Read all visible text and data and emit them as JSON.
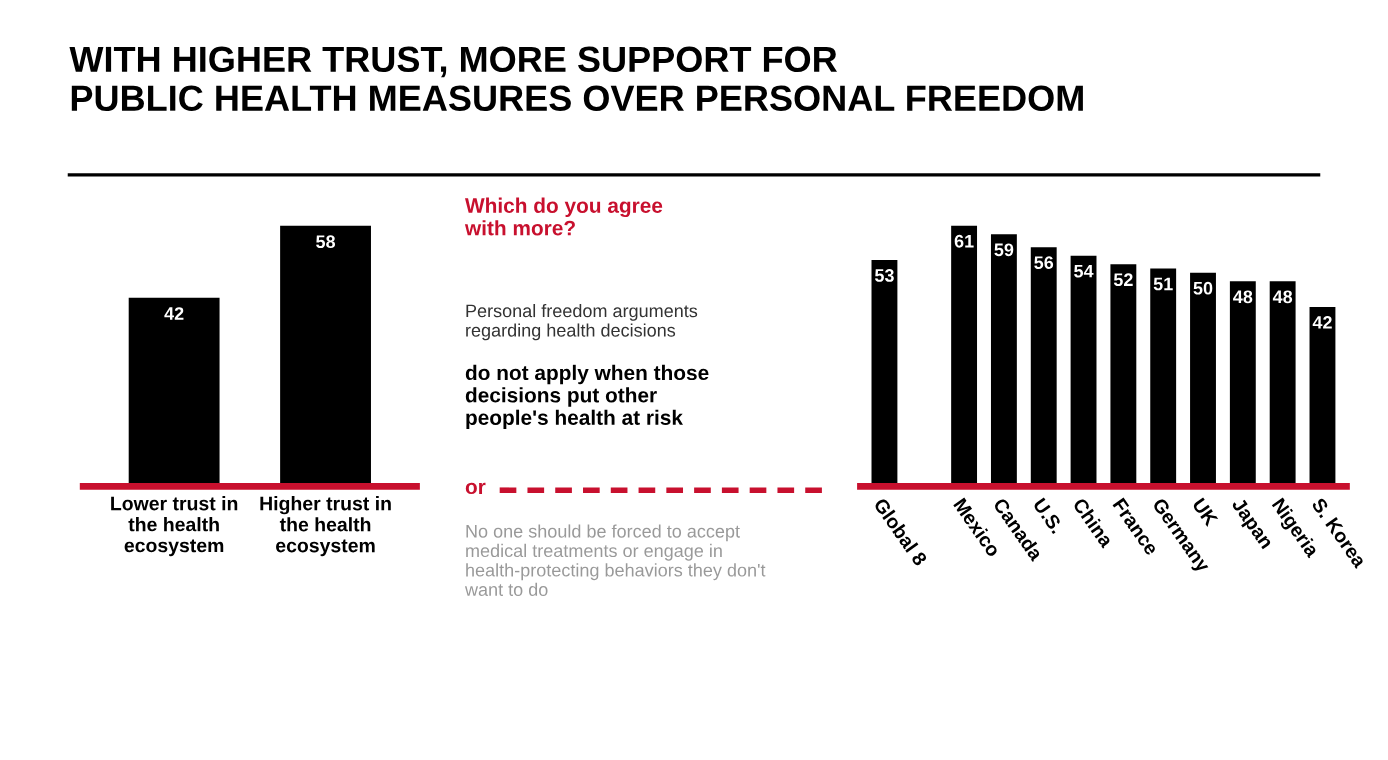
{
  "chart_data": [
    {
      "type": "bar",
      "title": "WITH HIGHER TRUST, MORE SUPPORT FOR\nPUBLIC HEALTH MEASURES OVER PERSONAL FREEDOM",
      "categories": [
        "Lower trust in\nthe health\necosystem",
        "Higher trust in\nthe health\necosystem"
      ],
      "values": [
        42,
        58
      ],
      "color": "#000000",
      "data_labels": true,
      "tick_labels": "x",
      "grid": false,
      "legend": false
    },
    {
      "type": "bar",
      "categories": [
        "Global 8",
        "Mexico",
        "Canada",
        "U.S.",
        "China",
        "France",
        "Germany",
        "UK",
        "Japan",
        "Nigeria",
        "S. Korea"
      ],
      "values": [
        53,
        61,
        59,
        56,
        54,
        52,
        51,
        50,
        48,
        48,
        42
      ],
      "color": "#000000",
      "data_labels": true,
      "tick_labels": "x",
      "grid": false,
      "legend": false,
      "annotations": [
        "Which do you agree\nwith more?",
        "Personal freedom arguments\nregarding health decisions",
        "do not apply when those\ndecisions put other\npeople's health at risk",
        "or",
        "No one should be forced to accept\nmedical treatments or engage in\nhealth-protecting behaviors they don't\nwant to do"
      ]
    }
  ]
}
